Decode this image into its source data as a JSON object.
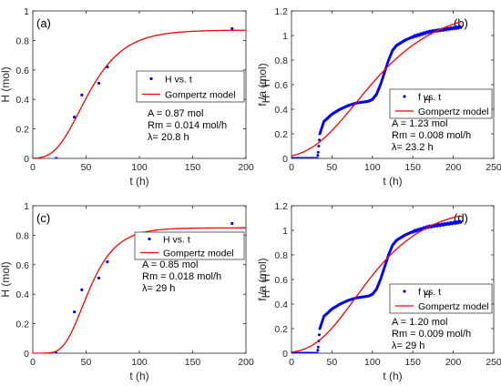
{
  "colors": {
    "data": "#0000ff",
    "model": "#ff0000",
    "axis": "#262626"
  },
  "chart_data": [
    {
      "type": "scatter",
      "panel_label": "(a)",
      "xlabel": "t (h)",
      "ylabel": "H (mol)",
      "ylabel_sub": "",
      "xlim": [
        0,
        200
      ],
      "ylim": [
        0,
        1
      ],
      "xticks": [
        0,
        50,
        100,
        150,
        200
      ],
      "yticks": [
        0,
        0.2,
        0.4,
        0.6,
        0.8,
        1
      ],
      "ytick_labels": [
        "0",
        "0.2",
        "0.4",
        "0.6",
        "0.8",
        "1"
      ],
      "legend_position": "right",
      "series": [
        {
          "name": "H vs. t",
          "kind": "points",
          "x": [
            22,
            39,
            46,
            62,
            70,
            187
          ],
          "y": [
            0.0,
            0.28,
            0.43,
            0.51,
            0.62,
            0.88
          ]
        },
        {
          "name": "Gompertz model",
          "kind": "gompertz",
          "A": 0.87,
          "Rm": 0.014,
          "lambda": 20.8
        }
      ],
      "annotations": [
        "A = 0.87 mol",
        "Rm = 0.014 mol/h",
        "λ= 20.8 h"
      ]
    },
    {
      "type": "line",
      "panel_label": "(b)",
      "xlabel": "t (h)",
      "ylabel": "f /a   (mol)",
      "ylabel_sub": "",
      "xlim": [
        0,
        250
      ],
      "ylim": [
        0,
        1.2
      ],
      "xticks": [
        0,
        50,
        100,
        150,
        200,
        250
      ],
      "yticks": [
        0,
        0.2,
        0.4,
        0.6,
        0.8,
        1,
        1.2
      ],
      "ytick_labels": [
        "0",
        "0.2",
        "0.4",
        "0.6",
        "0.8",
        "1",
        "1.2"
      ],
      "legend_position": "right",
      "series": [
        {
          "name": "f  vs. t",
          "kind": "dense",
          "x": [
            0,
            32,
            33,
            35,
            40,
            50,
            60,
            70,
            80,
            90,
            95,
            100,
            105,
            110,
            115,
            120,
            125,
            130,
            140,
            150,
            160,
            170,
            180,
            190,
            200,
            210
          ],
          "y": [
            0,
            0,
            0.05,
            0.2,
            0.3,
            0.36,
            0.4,
            0.43,
            0.45,
            0.46,
            0.465,
            0.48,
            0.52,
            0.6,
            0.7,
            0.8,
            0.88,
            0.92,
            0.96,
            0.99,
            1.01,
            1.03,
            1.04,
            1.05,
            1.06,
            1.07
          ]
        },
        {
          "name": "Gompertz model",
          "kind": "gompertz",
          "A": 1.23,
          "Rm": 0.008,
          "lambda": 23.2
        }
      ],
      "annotations": [
        "A = 1.23 mol",
        "Rm = 0.008 mol/h",
        "λ= 23.2 h"
      ]
    },
    {
      "type": "scatter",
      "panel_label": "(c)",
      "xlabel": "t (h)",
      "ylabel": "H (mol)",
      "ylabel_sub": "",
      "xlim": [
        0,
        200
      ],
      "ylim": [
        0,
        1
      ],
      "xticks": [
        0,
        50,
        100,
        150,
        200
      ],
      "yticks": [
        0,
        0.2,
        0.4,
        0.6,
        0.8,
        1
      ],
      "ytick_labels": [
        "0",
        "0.2",
        "0.4",
        "0.6",
        "0.8",
        "1"
      ],
      "legend_position": "top-right",
      "series": [
        {
          "name": "H vs. t",
          "kind": "points",
          "x": [
            22,
            39,
            46,
            62,
            70,
            187
          ],
          "y": [
            0.0,
            0.28,
            0.43,
            0.51,
            0.62,
            0.88
          ]
        },
        {
          "name": "Gompertz model",
          "kind": "gompertz",
          "A": 0.85,
          "Rm": 0.018,
          "lambda": 29
        }
      ],
      "annotations": [
        "A = 0.85 mol",
        "Rm = 0.018 mol/h",
        "λ= 29 h"
      ]
    },
    {
      "type": "line",
      "panel_label": "(d)",
      "xlabel": "t (h)",
      "ylabel": "f /a   (mol)",
      "ylabel_sub": "",
      "xlim": [
        0,
        250
      ],
      "ylim": [
        0,
        1.2
      ],
      "xticks": [
        0,
        50,
        100,
        150,
        200,
        250
      ],
      "yticks": [
        0,
        0.2,
        0.4,
        0.6,
        0.8,
        1,
        1.2
      ],
      "ytick_labels": [
        "0",
        "0.2",
        "0.4",
        "0.6",
        "0.8",
        "1",
        "1.2"
      ],
      "legend_position": "right",
      "series": [
        {
          "name": "f  vs. t",
          "kind": "dense",
          "x": [
            0,
            32,
            33,
            35,
            40,
            50,
            60,
            70,
            80,
            90,
            95,
            100,
            105,
            110,
            115,
            120,
            125,
            130,
            140,
            150,
            160,
            170,
            180,
            190,
            200,
            210
          ],
          "y": [
            0,
            0,
            0.05,
            0.2,
            0.3,
            0.36,
            0.4,
            0.43,
            0.45,
            0.46,
            0.465,
            0.48,
            0.52,
            0.6,
            0.7,
            0.8,
            0.88,
            0.92,
            0.96,
            0.99,
            1.01,
            1.03,
            1.04,
            1.05,
            1.06,
            1.07
          ]
        },
        {
          "name": "Gompertz model",
          "kind": "gompertz",
          "A": 1.2,
          "Rm": 0.009,
          "lambda": 29
        }
      ],
      "annotations": [
        "A = 1.20 mol",
        "Rm = 0.009 mol/h",
        "λ= 29 h"
      ]
    }
  ]
}
